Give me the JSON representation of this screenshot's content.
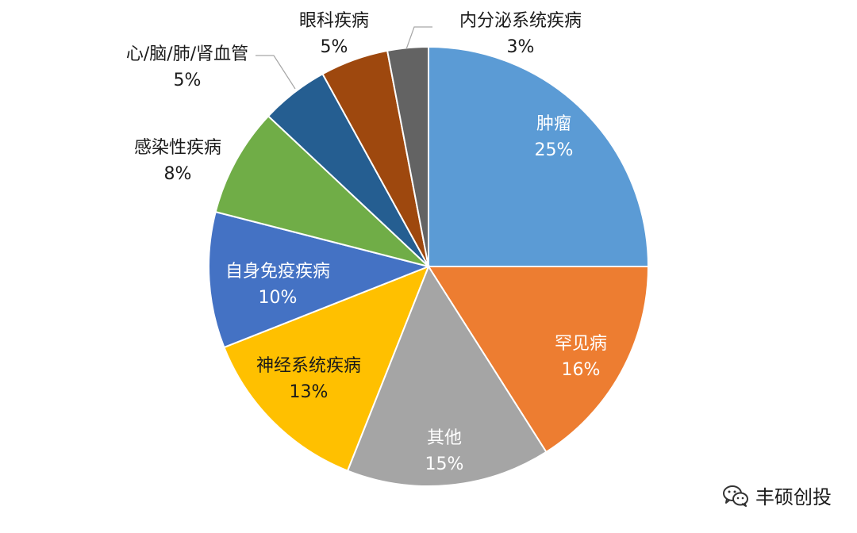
{
  "chart_data": {
    "type": "pie",
    "title": "",
    "slices": [
      {
        "label": "肿瘤",
        "value": 25,
        "value_label": "25%",
        "color": "#5B9BD5"
      },
      {
        "label": "罕见病",
        "value": 16,
        "value_label": "16%",
        "color": "#ED7D31"
      },
      {
        "label": "其他",
        "value": 15,
        "value_label": "15%",
        "color": "#A5A5A5"
      },
      {
        "label": "神经系统疾病",
        "value": 13,
        "value_label": "13%",
        "color": "#FFC000"
      },
      {
        "label": "自身免疫疾病",
        "value": 10,
        "value_label": "10%",
        "color": "#4472C4"
      },
      {
        "label": "感染性疾病",
        "value": 8,
        "value_label": "8%",
        "color": "#70AD47"
      },
      {
        "label": "心/脑/肺/肾血管",
        "value": 5,
        "value_label": "5%",
        "color": "#255E91"
      },
      {
        "label": "眼科疾病",
        "value": 5,
        "value_label": "5%",
        "color": "#9E480E"
      },
      {
        "label": "内分泌系统疾病",
        "value": 3,
        "value_label": "3%",
        "color": "#636363"
      }
    ],
    "start_angle": "12 o'clock",
    "direction": "clockwise",
    "data_labels": "category name and percentage"
  },
  "watermark": {
    "text": "丰硕创投",
    "icon": "wechat-icon"
  }
}
